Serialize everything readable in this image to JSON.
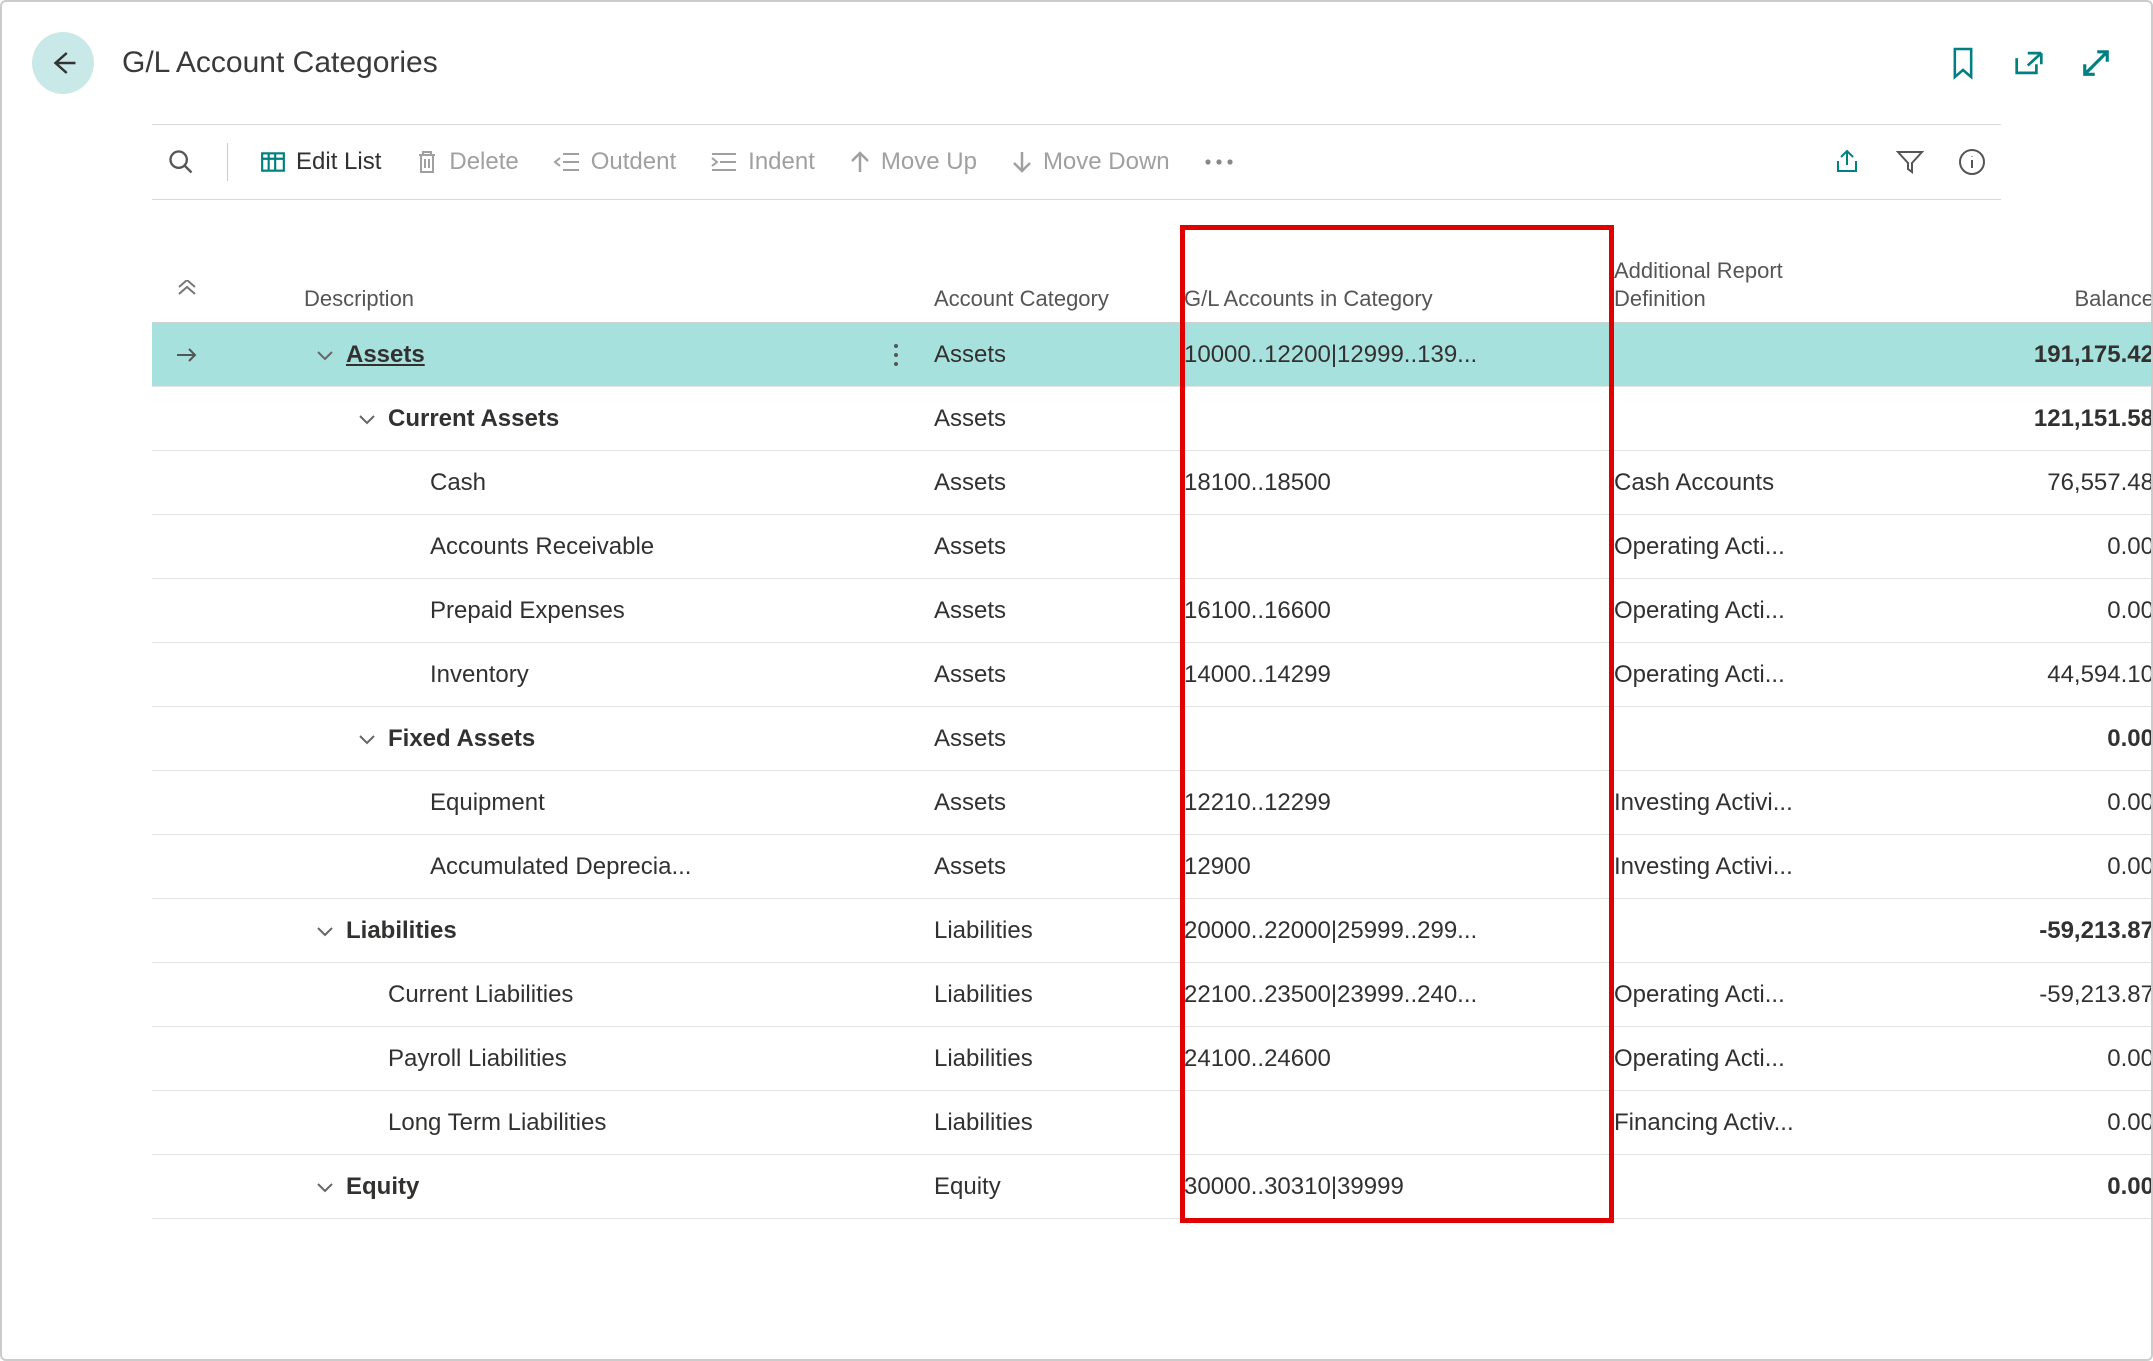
{
  "page": {
    "title": "G/L Account Categories"
  },
  "toolbar": {
    "edit_list": "Edit List",
    "delete": "Delete",
    "outdent": "Outdent",
    "indent": "Indent",
    "move_up": "Move Up",
    "move_down": "Move Down"
  },
  "columns": {
    "description": "Description",
    "account_category": "Account Category",
    "gl_accounts": "G/L Accounts in Category",
    "additional_report": "Additional Report Definition",
    "balance": "Balance"
  },
  "rows": [
    {
      "indent": 0,
      "expandable": true,
      "selected": true,
      "bold": true,
      "underline": true,
      "description": "Assets",
      "category": "Assets",
      "gl_accounts": "10000..12200|12999..139...",
      "report_def": "",
      "balance": "191,175.42"
    },
    {
      "indent": 1,
      "expandable": true,
      "selected": false,
      "bold": true,
      "underline": false,
      "description": "Current Assets",
      "category": "Assets",
      "gl_accounts": "",
      "report_def": "",
      "balance": "121,151.58"
    },
    {
      "indent": 2,
      "expandable": false,
      "selected": false,
      "bold": false,
      "underline": false,
      "description": "Cash",
      "category": "Assets",
      "gl_accounts": "18100..18500",
      "report_def": "Cash Accounts",
      "balance": "76,557.48"
    },
    {
      "indent": 2,
      "expandable": false,
      "selected": false,
      "bold": false,
      "underline": false,
      "description": "Accounts Receivable",
      "category": "Assets",
      "gl_accounts": "",
      "report_def": "Operating Acti...",
      "balance": "0.00"
    },
    {
      "indent": 2,
      "expandable": false,
      "selected": false,
      "bold": false,
      "underline": false,
      "description": "Prepaid Expenses",
      "category": "Assets",
      "gl_accounts": "16100..16600",
      "report_def": "Operating Acti...",
      "balance": "0.00"
    },
    {
      "indent": 2,
      "expandable": false,
      "selected": false,
      "bold": false,
      "underline": false,
      "description": "Inventory",
      "category": "Assets",
      "gl_accounts": "14000..14299",
      "report_def": "Operating Acti...",
      "balance": "44,594.10"
    },
    {
      "indent": 1,
      "expandable": true,
      "selected": false,
      "bold": true,
      "underline": false,
      "description": "Fixed Assets",
      "category": "Assets",
      "gl_accounts": "",
      "report_def": "",
      "balance": "0.00"
    },
    {
      "indent": 2,
      "expandable": false,
      "selected": false,
      "bold": false,
      "underline": false,
      "description": "Equipment",
      "category": "Assets",
      "gl_accounts": "12210..12299",
      "report_def": "Investing Activi...",
      "balance": "0.00"
    },
    {
      "indent": 2,
      "expandable": false,
      "selected": false,
      "bold": false,
      "underline": false,
      "description": "Accumulated Deprecia...",
      "category": "Assets",
      "gl_accounts": "12900",
      "report_def": "Investing Activi...",
      "balance": "0.00"
    },
    {
      "indent": 0,
      "expandable": true,
      "selected": false,
      "bold": true,
      "underline": false,
      "description": "Liabilities",
      "category": "Liabilities",
      "gl_accounts": "20000..22000|25999..299...",
      "report_def": "",
      "balance": "-59,213.87"
    },
    {
      "indent": 1,
      "expandable": false,
      "selected": false,
      "bold": false,
      "underline": false,
      "description": "Current Liabilities",
      "category": "Liabilities",
      "gl_accounts": "22100..23500|23999..240...",
      "report_def": "Operating Acti...",
      "balance": "-59,213.87"
    },
    {
      "indent": 1,
      "expandable": false,
      "selected": false,
      "bold": false,
      "underline": false,
      "description": "Payroll Liabilities",
      "category": "Liabilities",
      "gl_accounts": "24100..24600",
      "report_def": "Operating Acti...",
      "balance": "0.00"
    },
    {
      "indent": 1,
      "expandable": false,
      "selected": false,
      "bold": false,
      "underline": false,
      "description": "Long Term Liabilities",
      "category": "Liabilities",
      "gl_accounts": "",
      "report_def": "Financing Activ...",
      "balance": "0.00"
    },
    {
      "indent": 0,
      "expandable": true,
      "selected": false,
      "bold": true,
      "underline": false,
      "description": "Equity",
      "category": "Equity",
      "gl_accounts": "30000..30310|39999",
      "report_def": "",
      "balance": "0.00"
    }
  ],
  "highlight": {
    "color": "#e00000",
    "comment": "red annotation box around G/L Accounts column"
  },
  "colors": {
    "accent": "#008080",
    "selected_row_bg": "#a7e1de",
    "back_button_bg": "#c9e8e8",
    "border": "#d9d9d9",
    "text": "#323130",
    "disabled": "#a0a0a0"
  }
}
